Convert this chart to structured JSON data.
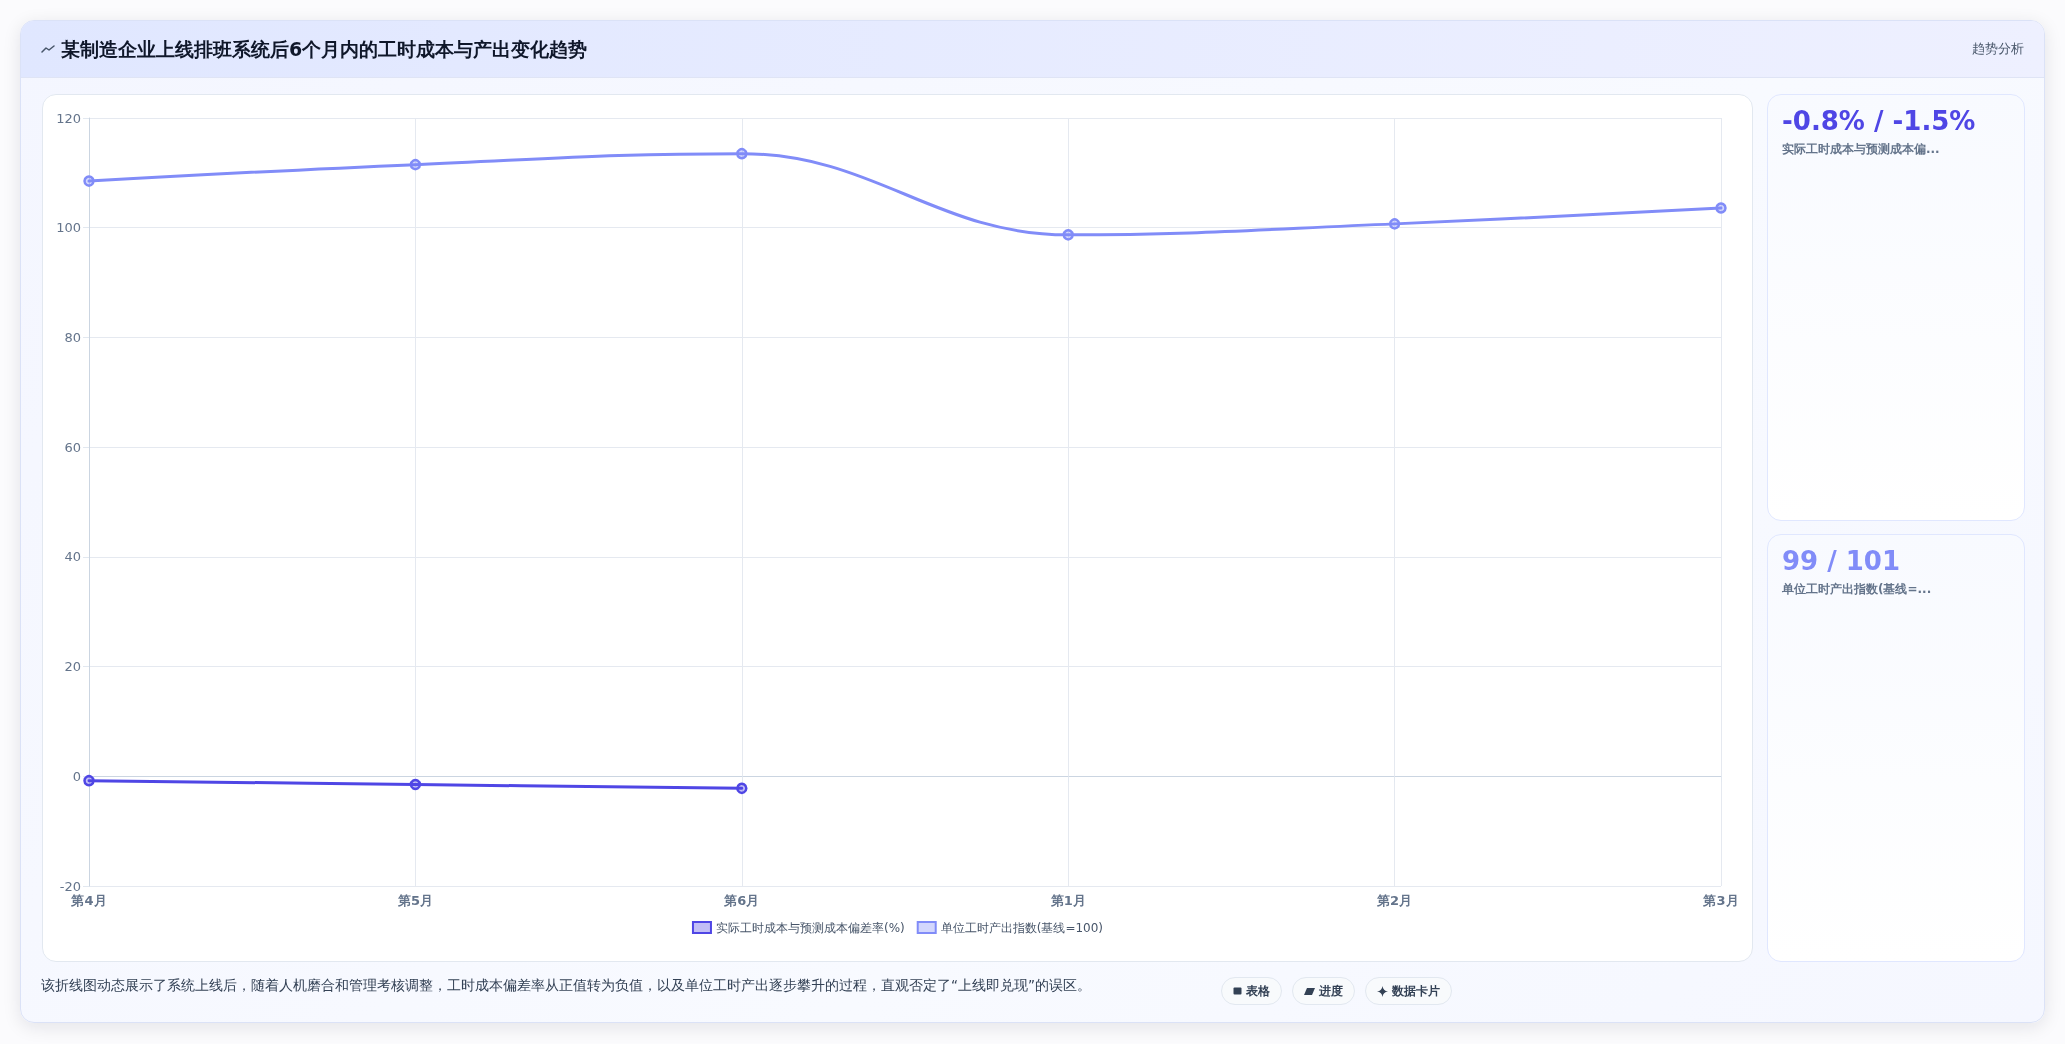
{
  "chart_data": {
    "type": "line",
    "title": "某制造企业上线排班系统后6个月内的工时成本与产出变化趋势",
    "subtitle": "趋势分析",
    "categories": [
      "第4月",
      "第5月",
      "第6月",
      "第1月",
      "第2月",
      "第3月"
    ],
    "series": [
      {
        "name": "实际工时成本与预测成本偏差率(%)",
        "color": "#4f46e5",
        "values": [
          -0.8,
          -1.5,
          -2.2,
          null,
          null,
          null
        ]
      },
      {
        "name": "单位工时产出指数(基线=100)",
        "color": "#818cf8",
        "values": [
          108.5,
          111.5,
          113.5,
          98.7,
          100.7,
          103.6
        ]
      }
    ],
    "ylim": [
      -20,
      120
    ],
    "yticks": [
      -20,
      0,
      20,
      40,
      60,
      80,
      100,
      120
    ],
    "grid": true,
    "legend": "bottom",
    "marker": "circle",
    "line_style": "solid",
    "annotations": [
      "-0.8% / -1.5%",
      "实际工时成本与预测成本偏...",
      "99 / 101",
      "单位工时产出指数(基线=...",
      "该折线图动态展示了系统上线后，随着人机磨合和管理考核调整，工时成本偏差率从正值转为负值，以及单位工时产出逐步攀升的过程，直观否定了“上线即兑现”的误区。",
      "表格",
      "进度",
      "数据卡片"
    ]
  }
}
